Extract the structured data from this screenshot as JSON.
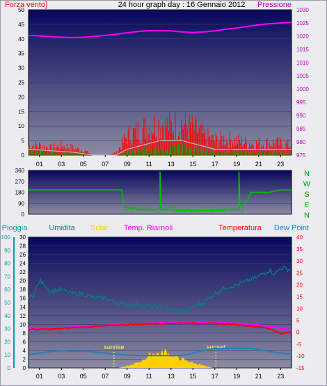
{
  "header": {
    "left_label": "Forza vento]",
    "title": "24 hour graph day : 16 Gennaio 2012",
    "right_label": "Pressione"
  },
  "colors": {
    "wind_gust": "#ff0000",
    "wind_avg": "#00a000",
    "wind_light": "#bdbdbd",
    "pressure": "#ff00ff",
    "direction": "#00c000",
    "rain": "#00a0a0",
    "humidity": "#008080",
    "solar": "#ffd000",
    "temp_rianoli": "#ff00ff",
    "temperature": "#ff0000",
    "dew_point": "#2080c0",
    "left_axis_text": "#000000",
    "right_axis_text": "#c000c0",
    "dir_axis_text": "#00a000",
    "panel_top": "#06065a",
    "panel_bottom": "#8a8aa0"
  },
  "chart_data": [
    {
      "type": "line",
      "name": "wind-pressure",
      "x_ticks": [
        "01",
        "03",
        "05",
        "07",
        "09",
        "11",
        "13",
        "15",
        "17",
        "19",
        "21",
        "23"
      ],
      "y_left": {
        "ticks": [
          "0",
          "5",
          "10",
          "15",
          "20",
          "25",
          "30",
          "35",
          "40",
          "45",
          "50"
        ],
        "range": [
          0,
          50
        ]
      },
      "y_right": {
        "ticks": [
          "975",
          "980",
          "985",
          "990",
          "995",
          "1000",
          "1005",
          "1010",
          "1015",
          "1020",
          "1025",
          "1030"
        ],
        "range": [
          975,
          1030
        ]
      },
      "series": [
        {
          "key": "pressure",
          "points": [
            [
              0,
              1020.3
            ],
            [
              1,
              1020.1
            ],
            [
              2,
              1019.8
            ],
            [
              3,
              1019.6
            ],
            [
              4,
              1019.5
            ],
            [
              5,
              1019.6
            ],
            [
              6,
              1019.9
            ],
            [
              7,
              1020.3
            ],
            [
              8,
              1020.7
            ],
            [
              9,
              1021.3
            ],
            [
              10,
              1021.8
            ],
            [
              11,
              1022.1
            ],
            [
              12,
              1022.1
            ],
            [
              13,
              1022.0
            ],
            [
              14,
              1021.6
            ],
            [
              15,
              1021.4
            ],
            [
              16,
              1021.6
            ],
            [
              17,
              1022.0
            ],
            [
              18,
              1022.6
            ],
            [
              19,
              1023.1
            ],
            [
              20,
              1023.7
            ],
            [
              21,
              1024.3
            ],
            [
              22,
              1024.7
            ],
            [
              23,
              1025.0
            ],
            [
              24,
              1025.2
            ]
          ]
        },
        {
          "key": "wind_gust",
          "points": [
            [
              0,
              4
            ],
            [
              1,
              4
            ],
            [
              2,
              3
            ],
            [
              3,
              4
            ],
            [
              4,
              3
            ],
            [
              5,
              2
            ],
            [
              6,
              0
            ],
            [
              7,
              0
            ],
            [
              8,
              1
            ],
            [
              9,
              8
            ],
            [
              10,
              10
            ],
            [
              11,
              12
            ],
            [
              12,
              13
            ],
            [
              13,
              12
            ],
            [
              14,
              13
            ],
            [
              15,
              11
            ],
            [
              16,
              8
            ],
            [
              17,
              6
            ],
            [
              18,
              7
            ],
            [
              19,
              6
            ],
            [
              20,
              5
            ],
            [
              21,
              5
            ],
            [
              22,
              5
            ],
            [
              23,
              5
            ],
            [
              24,
              4
            ]
          ]
        },
        {
          "key": "wind_light",
          "points": [
            [
              0,
              2
            ],
            [
              2,
              1.5
            ],
            [
              4,
              1
            ],
            [
              6,
              0
            ],
            [
              8,
              0
            ],
            [
              9,
              2
            ],
            [
              10,
              3
            ],
            [
              11,
              4
            ],
            [
              12,
              5
            ],
            [
              13,
              5
            ],
            [
              14,
              5
            ],
            [
              15,
              4
            ],
            [
              16,
              3
            ],
            [
              17,
              2
            ],
            [
              18,
              2
            ],
            [
              19,
              2
            ],
            [
              20,
              2
            ],
            [
              22,
              2
            ],
            [
              24,
              2
            ]
          ]
        },
        {
          "key": "wind_avg",
          "points": [
            [
              0,
              2
            ],
            [
              2,
              1
            ],
            [
              4,
              1
            ],
            [
              6,
              0
            ],
            [
              8,
              0
            ],
            [
              9,
              1
            ],
            [
              10,
              2
            ],
            [
              11,
              3
            ],
            [
              12,
              3
            ],
            [
              13,
              4
            ],
            [
              14,
              4
            ],
            [
              15,
              3
            ],
            [
              16,
              2
            ],
            [
              17,
              2
            ],
            [
              18,
              1
            ],
            [
              19,
              2
            ],
            [
              20,
              1
            ],
            [
              22,
              1
            ],
            [
              24,
              1
            ]
          ]
        }
      ]
    },
    {
      "type": "line",
      "name": "wind-direction",
      "y_ticks": [
        "0",
        "90",
        "180",
        "270",
        "360"
      ],
      "y_range": [
        0,
        360
      ],
      "compass": [
        "N",
        "W",
        "S",
        "E",
        "N"
      ],
      "series": [
        {
          "key": "direction",
          "points": [
            [
              0,
              200
            ],
            [
              8.5,
              200
            ],
            [
              8.7,
              60
            ],
            [
              10,
              40
            ],
            [
              11,
              35
            ],
            [
              12,
              45
            ],
            [
              12,
              350
            ],
            [
              12.1,
              40
            ],
            [
              13,
              35
            ],
            [
              15,
              30
            ],
            [
              17,
              30
            ],
            [
              18,
              35
            ],
            [
              19.2,
              40
            ],
            [
              19.2,
              350
            ],
            [
              19.3,
              60
            ],
            [
              19.6,
              80
            ],
            [
              20,
              120
            ],
            [
              20.3,
              180
            ],
            [
              21,
              180
            ],
            [
              22,
              180
            ],
            [
              23,
              200
            ],
            [
              24,
              200
            ]
          ]
        }
      ]
    },
    {
      "type": "line",
      "name": "weather",
      "legend": [
        "Pioggia",
        "Umidita",
        "Solar",
        "Temp. Riarnoli",
        "Temperatura",
        "Dew Point"
      ],
      "x_ticks": [
        "01",
        "03",
        "05",
        "07",
        "09",
        "11",
        "13",
        "15",
        "17",
        "19",
        "21",
        "23"
      ],
      "y_rain": {
        "ticks": [
          "0",
          "10",
          "20",
          "30",
          "40",
          "50",
          "60",
          "70",
          "80",
          "90",
          "100"
        ],
        "range": [
          0,
          100
        ]
      },
      "y_hum": {
        "ticks": [
          "0",
          "2",
          "4",
          "6",
          "8",
          "10",
          "12",
          "14",
          "16",
          "18",
          "20",
          "22",
          "24",
          "26",
          "28",
          "30"
        ],
        "range": [
          0,
          30
        ]
      },
      "y_temp": {
        "ticks": [
          "-15",
          "-10",
          "-5",
          "0",
          "5",
          "10",
          "15",
          "20",
          "25",
          "30",
          "35",
          "40"
        ],
        "range": [
          -15,
          40
        ]
      },
      "annotations": [
        {
          "text": "sunrise",
          "x": 7.8
        },
        {
          "text": "sunset",
          "x": 17.1
        }
      ],
      "series": [
        {
          "key": "humidity",
          "scale": "hum",
          "points": [
            [
              0,
              16
            ],
            [
              0.5,
              17
            ],
            [
              1,
              20
            ],
            [
              1.5,
              19
            ],
            [
              2,
              17.5
            ],
            [
              3,
              18
            ],
            [
              4,
              17
            ],
            [
              5,
              17
            ],
            [
              6,
              16
            ],
            [
              7,
              16
            ],
            [
              8,
              15
            ],
            [
              9,
              14.5
            ],
            [
              10,
              14.5
            ],
            [
              11,
              14
            ],
            [
              12,
              14
            ],
            [
              13,
              13.5
            ],
            [
              14,
              13
            ],
            [
              14.5,
              13.2
            ],
            [
              15,
              14
            ],
            [
              16,
              15
            ],
            [
              17,
              17
            ],
            [
              18,
              18.5
            ],
            [
              19,
              19
            ],
            [
              20,
              20
            ],
            [
              21,
              21
            ],
            [
              22,
              22.5
            ],
            [
              22.5,
              21.5
            ],
            [
              23,
              23
            ],
            [
              24,
              22.5
            ]
          ]
        },
        {
          "key": "solar",
          "scale": "hum",
          "points": [
            [
              8.2,
              0
            ],
            [
              9,
              0.4
            ],
            [
              10,
              1.2
            ],
            [
              11,
              2.8
            ],
            [
              11.5,
              3.5
            ],
            [
              12,
              3.2
            ],
            [
              12.5,
              3.8
            ],
            [
              13,
              3
            ],
            [
              14,
              2
            ],
            [
              15,
              1.2
            ],
            [
              16,
              0.5
            ],
            [
              16.8,
              0
            ]
          ]
        },
        {
          "key": "temp_rianoli",
          "scale": "temp",
          "points": [
            [
              0,
              1.6
            ],
            [
              2,
              1.6
            ],
            [
              4,
              2.1
            ],
            [
              6,
              2.6
            ],
            [
              8,
              3.2
            ],
            [
              10,
              3.6
            ],
            [
              12,
              3.9
            ],
            [
              14,
              4.1
            ],
            [
              16,
              4.1
            ],
            [
              18,
              3.9
            ],
            [
              20,
              3.4
            ],
            [
              22,
              2.6
            ],
            [
              24,
              0.8
            ]
          ]
        },
        {
          "key": "temperature",
          "scale": "temp",
          "points": [
            [
              0,
              1.2
            ],
            [
              2,
              1.3
            ],
            [
              4,
              1.9
            ],
            [
              6,
              2.4
            ],
            [
              8,
              3.0
            ],
            [
              10,
              3.4
            ],
            [
              12,
              3.7
            ],
            [
              14,
              3.9
            ],
            [
              16,
              3.8
            ],
            [
              18,
              3.5
            ],
            [
              20,
              2.8
            ],
            [
              22,
              1.6
            ],
            [
              23,
              -0.6
            ],
            [
              24,
              0.2
            ]
          ]
        },
        {
          "key": "dew_point",
          "scale": "temp",
          "points": [
            [
              0,
              -9.5
            ],
            [
              1,
              -8.8
            ],
            [
              2,
              -8.1
            ],
            [
              3,
              -7.8
            ],
            [
              4,
              -8.0
            ],
            [
              5,
              -7.9
            ],
            [
              6,
              -8.3
            ],
            [
              7,
              -8.8
            ],
            [
              8,
              -9.3
            ],
            [
              9,
              -9.6
            ],
            [
              10,
              -9.8
            ],
            [
              11,
              -9.8
            ],
            [
              12,
              -9.8
            ],
            [
              13,
              -9.8
            ],
            [
              14,
              -9.8
            ],
            [
              15,
              -8.8
            ],
            [
              16,
              -7.6
            ],
            [
              17,
              -6.8
            ],
            [
              18,
              -6.8
            ],
            [
              19,
              -6.8
            ],
            [
              20,
              -6.7
            ],
            [
              21,
              -7.2
            ],
            [
              22,
              -8.1
            ],
            [
              23,
              -8.8
            ],
            [
              24,
              -9.2
            ]
          ]
        }
      ]
    }
  ]
}
